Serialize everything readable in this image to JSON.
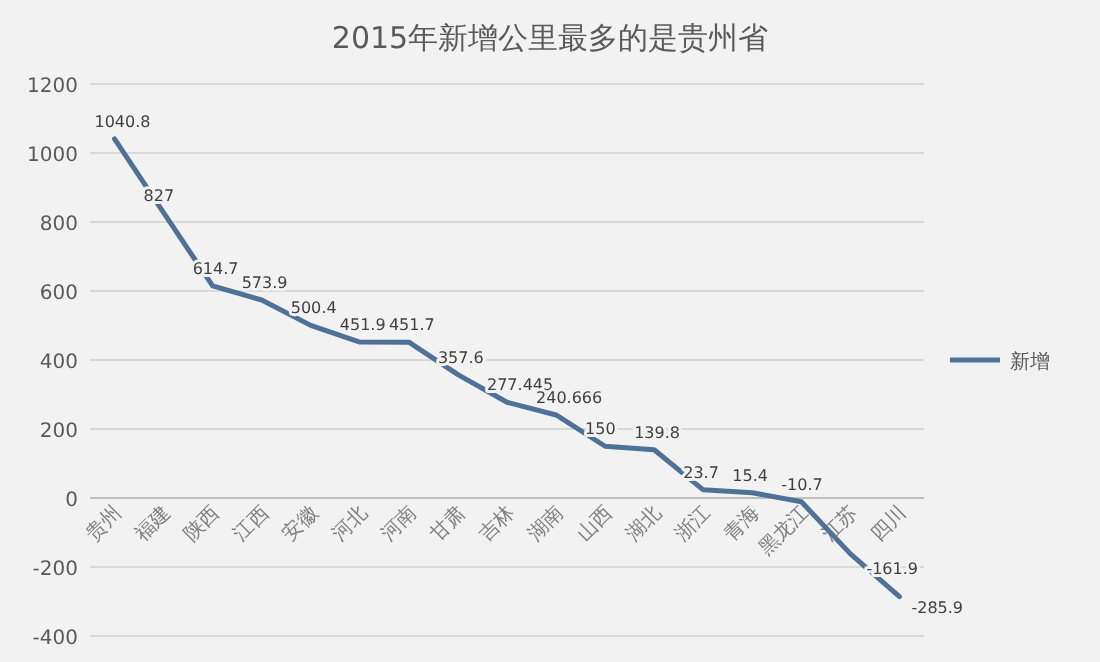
{
  "chart_data": {
    "type": "line",
    "title": "2015年新增公里最多的是贵州省",
    "categories": [
      "贵州",
      "福建",
      "陕西",
      "江西",
      "安徽",
      "河北",
      "河南",
      "甘肃",
      "吉林",
      "湖南",
      "山西",
      "湖北",
      "浙江",
      "青海",
      "黑龙江",
      "江苏",
      "四川"
    ],
    "series": [
      {
        "name": "新增",
        "color": "#4f7198",
        "values": [
          1040.8,
          827,
          614.7,
          573.9,
          500.4,
          451.9,
          451.7,
          357.6,
          277.445,
          240.666,
          150,
          139.8,
          23.7,
          15.4,
          -10.7,
          -161.9,
          -285.9
        ]
      }
    ],
    "ylim": [
      -400,
      1200
    ],
    "yticks": [
      -400,
      -200,
      0,
      200,
      400,
      600,
      800,
      1000,
      1200
    ],
    "grid": "y",
    "legend": "right",
    "data_labels": true
  }
}
